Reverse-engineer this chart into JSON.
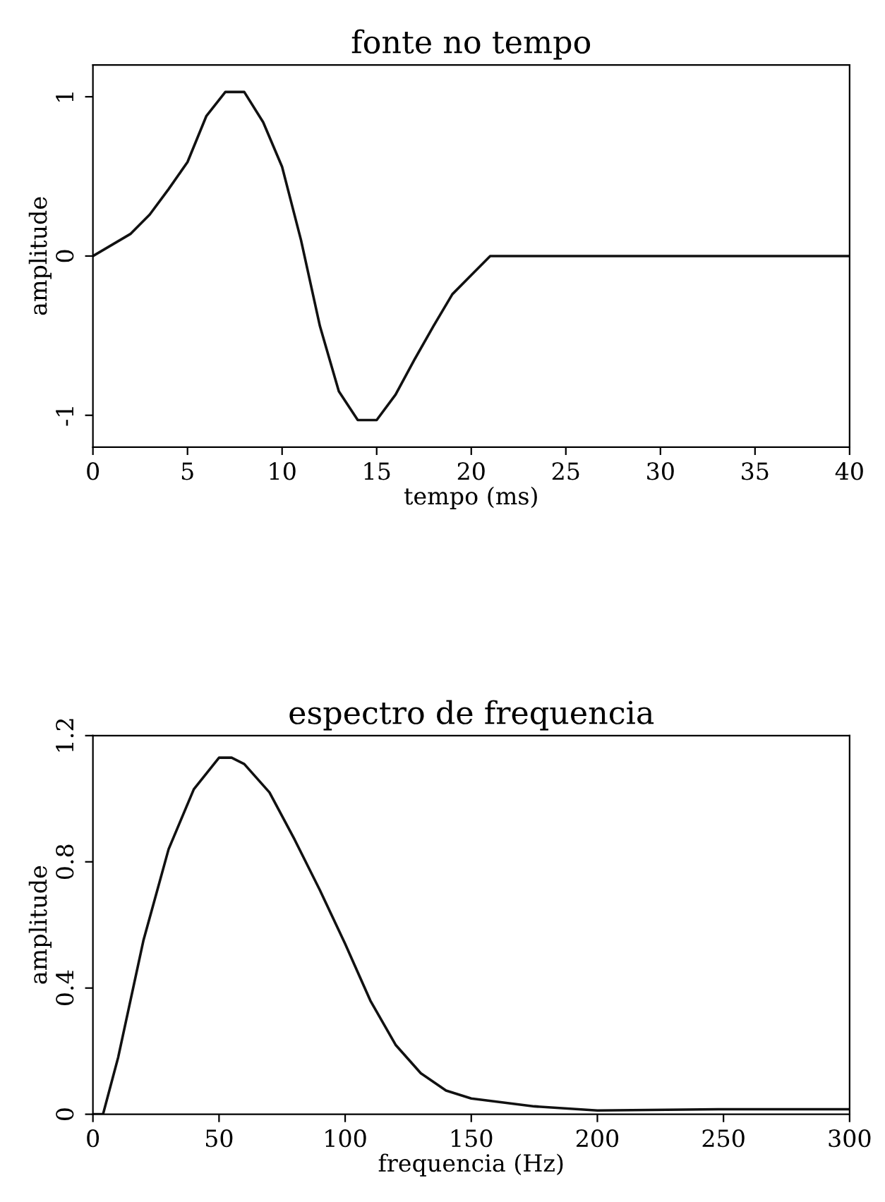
{
  "chart_data": [
    {
      "type": "line",
      "title": "fonte no tempo",
      "xlabel": "tempo (ms)",
      "ylabel": "amplitude",
      "x": [
        0,
        2,
        3,
        4,
        5,
        6,
        7,
        8,
        9,
        10,
        11,
        12,
        13,
        14,
        15,
        16,
        17,
        18,
        19,
        20,
        21,
        40
      ],
      "series": [
        {
          "color": "#111111",
          "values": [
            0,
            0.14,
            0.26,
            0.42,
            0.59,
            0.88,
            1.03,
            1.03,
            0.84,
            0.56,
            0.1,
            -0.44,
            -0.85,
            -1.03,
            -1.03,
            -0.87,
            -0.65,
            -0.44,
            -0.24,
            -0.12,
            0,
            0
          ]
        }
      ],
      "xlim": [
        0,
        40
      ],
      "xticks": [
        0,
        5,
        10,
        15,
        20,
        25,
        30,
        35,
        40
      ],
      "ylim": [
        -1.2,
        1.2
      ],
      "yticks": [
        -1,
        0,
        1
      ],
      "grid": false,
      "legend": false
    },
    {
      "type": "line",
      "title": "espectro de frequencia",
      "xlabel": "frequencia (Hz)",
      "ylabel": "amplitude",
      "x": [
        0,
        4,
        10,
        20,
        30,
        40,
        50,
        55,
        60,
        70,
        80,
        90,
        100,
        110,
        120,
        130,
        140,
        150,
        175,
        200,
        250,
        300
      ],
      "series": [
        {
          "color": "#111111",
          "values": [
            0,
            0,
            0.18,
            0.55,
            0.84,
            1.03,
            1.13,
            1.13,
            1.11,
            1.02,
            0.87,
            0.71,
            0.54,
            0.36,
            0.22,
            0.13,
            0.075,
            0.05,
            0.025,
            0.012,
            0.016,
            0.016
          ]
        }
      ],
      "xlim": [
        0,
        300
      ],
      "xticks": [
        0,
        50,
        100,
        150,
        200,
        250,
        300
      ],
      "ylim": [
        0,
        1.2
      ],
      "yticks": [
        0,
        0.4,
        0.8,
        1.2
      ],
      "grid": false,
      "legend": false
    }
  ]
}
